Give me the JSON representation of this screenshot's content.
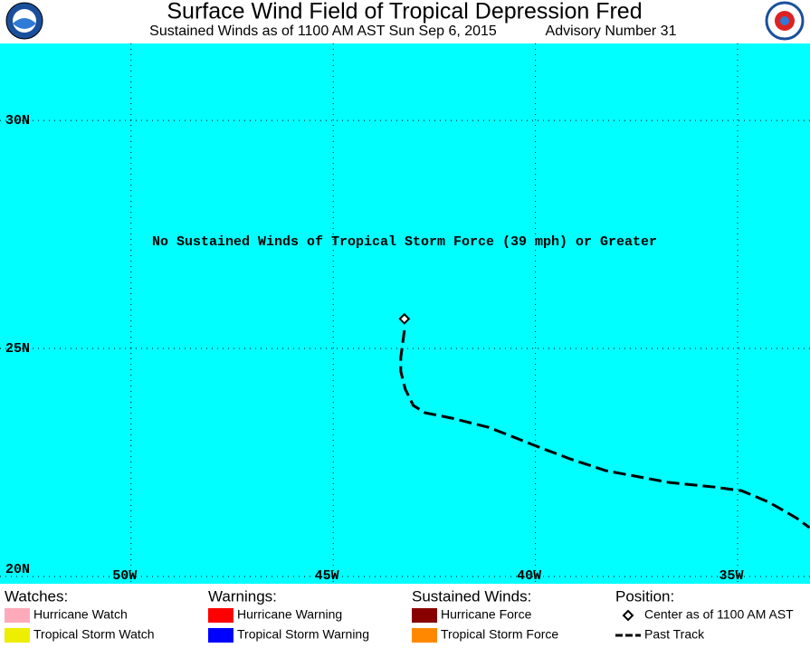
{
  "header": {
    "title": "Surface Wind Field of Tropical Depression Fred",
    "subtitle_left": "Sustained Winds as of 1100 AM AST Sun Sep 6, 2015",
    "subtitle_right": "Advisory Number 31"
  },
  "map": {
    "message": "No Sustained Winds of Tropical Storm Force (39 mph) or Greater",
    "background": "#00ffff",
    "xlim": [
      -53.24,
      -33.21
    ],
    "ylim": [
      19.84,
      31.69
    ],
    "xticks": [
      {
        "value": -50,
        "label": "50W"
      },
      {
        "value": -45,
        "label": "45W"
      },
      {
        "value": -40,
        "label": "40W"
      },
      {
        "value": -35,
        "label": "35W"
      }
    ],
    "yticks": [
      {
        "value": 20,
        "label": "20N"
      },
      {
        "value": 25,
        "label": "25N"
      },
      {
        "value": 30,
        "label": "30N"
      }
    ],
    "grid": true,
    "center": {
      "lon": -43.24,
      "lat": 25.65
    },
    "track": {
      "lon": [
        -43.24,
        -43.33,
        -43.33,
        -43.22,
        -43.02,
        -42.73,
        -42.06,
        -41.16,
        -40.72,
        -40.04,
        -39.15,
        -38.26,
        -36.69,
        -35.57,
        -34.9,
        -34.23,
        -33.56,
        -33.22
      ],
      "lat": [
        25.4,
        24.8,
        24.5,
        24.11,
        23.75,
        23.59,
        23.47,
        23.27,
        23.12,
        22.88,
        22.58,
        22.32,
        22.06,
        21.96,
        21.88,
        21.63,
        21.29,
        21.07
      ]
    }
  },
  "legend": {
    "groups": [
      {
        "title": "Watches:",
        "items": [
          {
            "label": "Hurricane Watch",
            "color": "#ffaabb"
          },
          {
            "label": "Tropical Storm Watch",
            "color": "#eeee00"
          }
        ]
      },
      {
        "title": "Warnings:",
        "items": [
          {
            "label": "Hurricane Warning",
            "color": "#ff0000"
          },
          {
            "label": "Tropical Storm Warning",
            "color": "#0000ff"
          }
        ]
      },
      {
        "title": "Sustained Winds:",
        "items": [
          {
            "label": "Hurricane Force",
            "color": "#880000"
          },
          {
            "label": "Tropical Storm Force",
            "color": "#ff8800"
          }
        ]
      },
      {
        "title": "Position:",
        "items": [
          {
            "label": "Center as of 1100 AM AST"
          },
          {
            "label": "Past Track"
          }
        ]
      }
    ]
  }
}
